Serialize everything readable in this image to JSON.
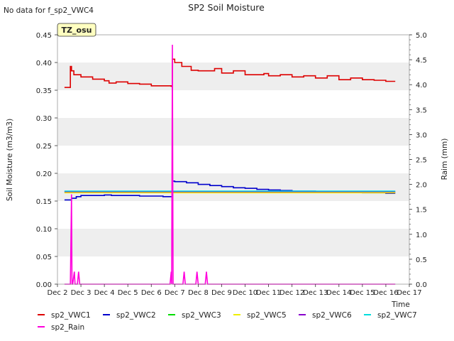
{
  "note": "No data for f_sp2_VWC4",
  "site_badge": "TZ_osu",
  "chart_data": {
    "type": "line",
    "title": "SP2 Soil Moisture",
    "xlabel": "Time",
    "ylabel": "Soil Moisture (m3/m3)",
    "y2label": "Raim (mm)",
    "x_ticks": [
      "Dec 2",
      "Dec 3",
      "Dec 4",
      "Dec 5",
      "Dec 6",
      "Dec 7",
      "Dec 8",
      "Dec 9",
      "Dec 10",
      "Dec 11",
      "Dec 12",
      "Dec 13",
      "Dec 14",
      "Dec 15",
      "Dec 16",
      "Dec 17"
    ],
    "x_range": [
      2.0,
      17.0
    ],
    "ylim": [
      0.0,
      0.45
    ],
    "y_ticks": [
      "0.00",
      "0.05",
      "0.10",
      "0.15",
      "0.20",
      "0.25",
      "0.30",
      "0.35",
      "0.40",
      "0.45"
    ],
    "y2lim": [
      0.0,
      5.0
    ],
    "y2_ticks": [
      "0.0",
      "0.5",
      "1.0",
      "1.5",
      "2.0",
      "2.5",
      "3.0",
      "3.5",
      "4.0",
      "4.5",
      "5.0"
    ],
    "grid_bands": true,
    "legend_position": "bottom",
    "series": [
      {
        "name": "sp2_VWC1",
        "color": "#dd0000",
        "axis": "left",
        "x": [
          2.3,
          2.5,
          2.55,
          2.6,
          2.7,
          3.0,
          3.5,
          4.0,
          4.2,
          4.5,
          5.0,
          5.5,
          6.0,
          6.5,
          6.85,
          6.9,
          7.0,
          7.3,
          7.7,
          8.0,
          8.5,
          8.7,
          9.0,
          9.5,
          9.7,
          10.0,
          10.8,
          11.0,
          11.5,
          12.0,
          12.5,
          13.0,
          13.5,
          14.0,
          14.5,
          15.0,
          15.5,
          16.0,
          16.4
        ],
        "y": [
          0.355,
          0.355,
          0.393,
          0.385,
          0.378,
          0.374,
          0.37,
          0.367,
          0.363,
          0.365,
          0.362,
          0.361,
          0.358,
          0.358,
          0.357,
          0.406,
          0.4,
          0.393,
          0.386,
          0.385,
          0.385,
          0.389,
          0.381,
          0.385,
          0.385,
          0.378,
          0.38,
          0.376,
          0.378,
          0.374,
          0.376,
          0.372,
          0.376,
          0.369,
          0.372,
          0.369,
          0.368,
          0.366,
          0.366
        ]
      },
      {
        "name": "sp2_VWC2",
        "color": "#0000cc",
        "axis": "left",
        "x": [
          2.3,
          2.6,
          2.8,
          3.0,
          3.5,
          4.0,
          4.3,
          4.5,
          5.0,
          5.5,
          6.0,
          6.5,
          6.85,
          6.9,
          7.0,
          7.5,
          8.0,
          8.5,
          9.0,
          9.5,
          10.0,
          10.5,
          11.0,
          11.5,
          12.0,
          13.0,
          14.0,
          15.0,
          16.0,
          16.4
        ],
        "y": [
          0.152,
          0.155,
          0.158,
          0.16,
          0.16,
          0.161,
          0.16,
          0.16,
          0.16,
          0.159,
          0.159,
          0.158,
          0.158,
          0.186,
          0.185,
          0.183,
          0.18,
          0.178,
          0.176,
          0.174,
          0.173,
          0.171,
          0.17,
          0.169,
          0.168,
          0.167,
          0.166,
          0.165,
          0.164,
          0.164
        ]
      },
      {
        "name": "sp2_VWC3",
        "color": "#00dd00",
        "axis": "left",
        "x": [
          2.3,
          16.4
        ],
        "y": [
          0.166,
          0.166
        ]
      },
      {
        "name": "sp2_VWC5",
        "color": "#eeee00",
        "axis": "left",
        "x": [
          2.3,
          16.4
        ],
        "y": [
          0.165,
          0.165
        ]
      },
      {
        "name": "sp2_VWC6",
        "color": "#8800cc",
        "axis": "left",
        "x": [
          2.3,
          16.4
        ],
        "y": [
          0.167,
          0.167
        ]
      },
      {
        "name": "sp2_VWC7",
        "color": "#00dddd",
        "axis": "left",
        "x": [
          2.3,
          16.4
        ],
        "y": [
          0.168,
          0.168
        ]
      },
      {
        "name": "sp2_Rain",
        "color": "#ff00dd",
        "axis": "right",
        "x": [
          2.3,
          2.55,
          2.6,
          2.62,
          2.65,
          2.72,
          2.75,
          2.85,
          2.9,
          2.95,
          6.8,
          6.85,
          6.87,
          6.9,
          6.93,
          6.95,
          7.0,
          7.35,
          7.4,
          7.45,
          7.9,
          7.95,
          8.0,
          8.3,
          8.35,
          8.4,
          16.4
        ],
        "y": [
          0.0,
          0.0,
          1.8,
          0.0,
          0.0,
          0.25,
          0.0,
          0.0,
          0.25,
          0.0,
          0.0,
          0.25,
          0.0,
          4.8,
          0.0,
          0.0,
          0.0,
          0.0,
          0.25,
          0.0,
          0.0,
          0.25,
          0.0,
          0.0,
          0.25,
          0.0,
          0.0
        ]
      }
    ]
  }
}
